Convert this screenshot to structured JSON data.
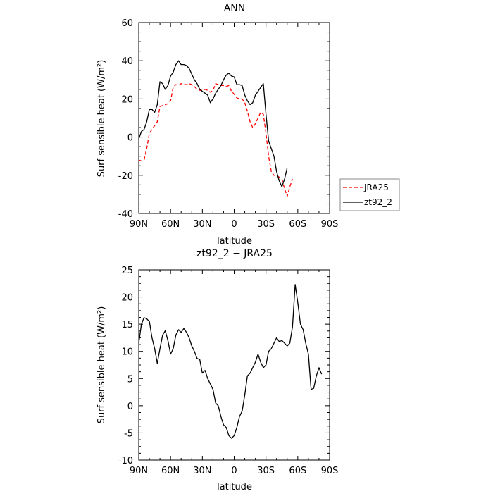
{
  "chart_data": [
    {
      "type": "line",
      "title": "ANN",
      "xlabel": "latitude",
      "ylabel": "Surf sensible heat (W/m²)",
      "xlim": [
        90,
        -90
      ],
      "ylim": [
        -40,
        60
      ],
      "x_tick_values": [
        90,
        60,
        30,
        0,
        -30,
        -60,
        -90
      ],
      "x_tick_labels": [
        "90N",
        "60N",
        "30N",
        "0",
        "30S",
        "60S",
        "90S"
      ],
      "y_tick_values": [
        -40,
        -20,
        0,
        20,
        40,
        60
      ],
      "y_tick_labels": [
        "-40",
        "-20",
        "0",
        "20",
        "40",
        "60"
      ],
      "grid": false,
      "legend_position": "bottom-right, outside",
      "series": [
        {
          "name": "JRA25",
          "color": "#ff0000",
          "dash": "dashed",
          "points": [
            [
              90,
              -12
            ],
            [
              87.5,
              -12.5
            ],
            [
              85,
              -12
            ],
            [
              82.5,
              -6
            ],
            [
              80,
              2
            ],
            [
              77.5,
              4
            ],
            [
              75,
              6
            ],
            [
              72.5,
              8
            ],
            [
              70,
              16
            ],
            [
              67.5,
              16.5
            ],
            [
              65,
              17
            ],
            [
              62.5,
              17.5
            ],
            [
              60,
              19
            ],
            [
              57.5,
              26
            ],
            [
              55,
              27.5
            ],
            [
              52.5,
              27
            ],
            [
              50,
              28
            ],
            [
              47.5,
              27.5
            ],
            [
              45,
              27.5
            ],
            [
              42.5,
              28
            ],
            [
              40,
              27.5
            ],
            [
              37.5,
              26.5
            ],
            [
              35,
              25
            ],
            [
              32.5,
              24.5
            ],
            [
              30,
              24.5
            ],
            [
              27.5,
              25
            ],
            [
              25,
              24.5
            ],
            [
              22.5,
              23.5
            ],
            [
              20,
              24.5
            ],
            [
              17.5,
              28
            ],
            [
              15,
              27.5
            ],
            [
              12.5,
              27
            ],
            [
              10,
              27
            ],
            [
              7.5,
              26.5
            ],
            [
              5,
              27
            ],
            [
              2.5,
              24
            ],
            [
              0,
              22.5
            ],
            [
              -2.5,
              20.5
            ],
            [
              -5,
              20
            ],
            [
              -7.5,
              20
            ],
            [
              -10,
              18
            ],
            [
              -12.5,
              13.5
            ],
            [
              -15,
              8
            ],
            [
              -17.5,
              5
            ],
            [
              -20,
              7
            ],
            [
              -22.5,
              10
            ],
            [
              -25,
              13
            ],
            [
              -27.5,
              12
            ],
            [
              -30,
              2
            ],
            [
              -32.5,
              -10
            ],
            [
              -35,
              -18
            ],
            [
              -37.5,
              -20
            ],
            [
              -40,
              -20
            ],
            [
              -42.5,
              -21
            ],
            [
              -45,
              -22
            ],
            [
              -47.5,
              -27
            ],
            [
              -50,
              -31
            ],
            [
              -52.5,
              -26
            ],
            [
              -55,
              -22
            ]
          ]
        },
        {
          "name": "zt92_2",
          "color": "#000000",
          "dash": "solid",
          "points": [
            [
              90,
              -1
            ],
            [
              87.5,
              3
            ],
            [
              85,
              4
            ],
            [
              82.5,
              8
            ],
            [
              80,
              14.5
            ],
            [
              77.5,
              14.5
            ],
            [
              75,
              13
            ],
            [
              72.5,
              17
            ],
            [
              70,
              29
            ],
            [
              67.5,
              28
            ],
            [
              65,
              25
            ],
            [
              62.5,
              27
            ],
            [
              60,
              32
            ],
            [
              57.5,
              34
            ],
            [
              55,
              38
            ],
            [
              52.5,
              40
            ],
            [
              50,
              38
            ],
            [
              47.5,
              38
            ],
            [
              45,
              37.5
            ],
            [
              42.5,
              36
            ],
            [
              40,
              33
            ],
            [
              37.5,
              30
            ],
            [
              35,
              28
            ],
            [
              32.5,
              25
            ],
            [
              30,
              24
            ],
            [
              27.5,
              23
            ],
            [
              25,
              22
            ],
            [
              22.5,
              18
            ],
            [
              20,
              20
            ],
            [
              17.5,
              23
            ],
            [
              15,
              25
            ],
            [
              12.5,
              27
            ],
            [
              10,
              30
            ],
            [
              7.5,
              32.5
            ],
            [
              5,
              33.5
            ],
            [
              2.5,
              32
            ],
            [
              0,
              31.5
            ],
            [
              -2.5,
              27.5
            ],
            [
              -5,
              27.5
            ],
            [
              -7.5,
              27
            ],
            [
              -10,
              22
            ],
            [
              -12.5,
              19
            ],
            [
              -15,
              17
            ],
            [
              -17.5,
              18
            ],
            [
              -20,
              22
            ],
            [
              -22.5,
              24
            ],
            [
              -25,
              26
            ],
            [
              -27.5,
              28
            ],
            [
              -30,
              12
            ],
            [
              -32.5,
              -2
            ],
            [
              -35,
              -6
            ],
            [
              -37.5,
              -10
            ],
            [
              -40,
              -18
            ],
            [
              -42.5,
              -23
            ],
            [
              -45,
              -26
            ],
            [
              -47.5,
              -22
            ],
            [
              -50,
              -16
            ]
          ]
        }
      ]
    },
    {
      "type": "line",
      "title": "zt92_2 − JRA25",
      "xlabel": "latitude",
      "ylabel": "Surf sensible heat (W/m²)",
      "xlim": [
        90,
        -90
      ],
      "ylim": [
        -10,
        25
      ],
      "x_tick_values": [
        90,
        60,
        30,
        0,
        -30,
        -60,
        -90
      ],
      "x_tick_labels": [
        "90N",
        "60N",
        "30N",
        "0",
        "30S",
        "60S",
        "90S"
      ],
      "y_tick_values": [
        -10,
        -5,
        0,
        5,
        10,
        15,
        20,
        25
      ],
      "y_tick_labels": [
        "-10",
        "-5",
        "0",
        "5",
        "10",
        "15",
        "20",
        "25"
      ],
      "grid": false,
      "series": [
        {
          "color": "#000000",
          "dash": "solid",
          "points": [
            [
              90,
              11.5
            ],
            [
              87.5,
              15
            ],
            [
              85,
              16.2
            ],
            [
              82.5,
              16
            ],
            [
              80,
              15.5
            ],
            [
              77.5,
              12.5
            ],
            [
              75,
              10.5
            ],
            [
              72.5,
              7.8
            ],
            [
              70,
              10.5
            ],
            [
              67.5,
              13
            ],
            [
              65,
              13.8
            ],
            [
              62.5,
              12
            ],
            [
              60,
              9.5
            ],
            [
              57.5,
              10.5
            ],
            [
              55,
              13
            ],
            [
              52.5,
              14
            ],
            [
              50,
              13.5
            ],
            [
              47.5,
              14.2
            ],
            [
              45,
              13.5
            ],
            [
              42.5,
              12.5
            ],
            [
              40,
              11
            ],
            [
              37.5,
              10
            ],
            [
              35,
              8.7
            ],
            [
              32.5,
              8.5
            ],
            [
              30,
              6
            ],
            [
              27.5,
              6.5
            ],
            [
              25,
              5
            ],
            [
              22.5,
              4
            ],
            [
              20,
              3
            ],
            [
              17.5,
              0.5
            ],
            [
              15,
              0
            ],
            [
              12.5,
              -2
            ],
            [
              10,
              -3.5
            ],
            [
              7.5,
              -4
            ],
            [
              5,
              -5.5
            ],
            [
              2.5,
              -6
            ],
            [
              0,
              -5.5
            ],
            [
              -2.5,
              -4
            ],
            [
              -5,
              -2
            ],
            [
              -7.5,
              -1
            ],
            [
              -10,
              2
            ],
            [
              -12.5,
              5.5
            ],
            [
              -15,
              6
            ],
            [
              -17.5,
              7
            ],
            [
              -20,
              8
            ],
            [
              -22.5,
              9.5
            ],
            [
              -25,
              8
            ],
            [
              -27.5,
              7
            ],
            [
              -30,
              7.5
            ],
            [
              -32.5,
              10
            ],
            [
              -35,
              10.5
            ],
            [
              -37.5,
              11.5
            ],
            [
              -40,
              12.5
            ],
            [
              -42.5,
              11.8
            ],
            [
              -45,
              12
            ],
            [
              -47.5,
              11.5
            ],
            [
              -50,
              11
            ],
            [
              -52.5,
              11.5
            ],
            [
              -55,
              14.5
            ],
            [
              -57.5,
              22.3
            ],
            [
              -60,
              19
            ],
            [
              -62.5,
              15
            ],
            [
              -65,
              14
            ],
            [
              -67.5,
              11.5
            ],
            [
              -70,
              9.5
            ],
            [
              -72.5,
              3
            ],
            [
              -75,
              3.2
            ],
            [
              -77.5,
              5.5
            ],
            [
              -80,
              7
            ],
            [
              -82.5,
              5.8
            ]
          ]
        }
      ]
    }
  ]
}
